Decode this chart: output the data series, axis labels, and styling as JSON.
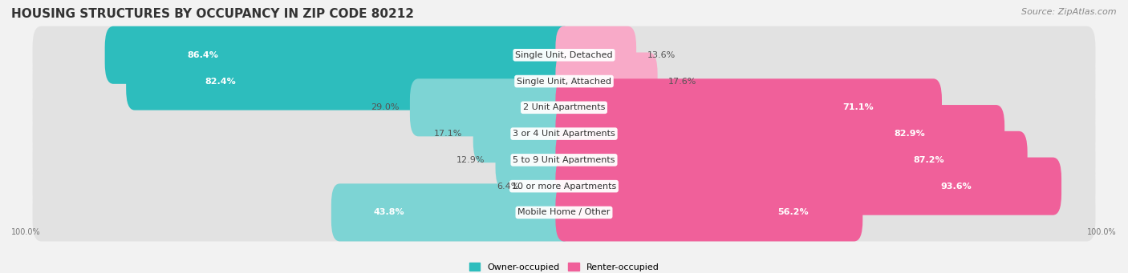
{
  "title": "HOUSING STRUCTURES BY OCCUPANCY IN ZIP CODE 80212",
  "source": "Source: ZipAtlas.com",
  "categories": [
    "Single Unit, Detached",
    "Single Unit, Attached",
    "2 Unit Apartments",
    "3 or 4 Unit Apartments",
    "5 to 9 Unit Apartments",
    "10 or more Apartments",
    "Mobile Home / Other"
  ],
  "owner_pct": [
    86.4,
    82.4,
    29.0,
    17.1,
    12.9,
    6.4,
    43.8
  ],
  "renter_pct": [
    13.6,
    17.6,
    71.1,
    82.9,
    87.2,
    93.6,
    56.2
  ],
  "owner_color_dark": "#2dbdbd",
  "owner_color_light": "#7dd4d4",
  "renter_color_dark": "#f0609a",
  "renter_color_light": "#f8aac8",
  "bg_color": "#f2f2f2",
  "band_color": "#e2e2e2",
  "title_fontsize": 11,
  "source_fontsize": 8,
  "label_fontsize": 8,
  "pct_fontsize": 8,
  "bar_height": 0.6,
  "legend_label_owner": "Owner-occupied",
  "legend_label_renter": "Renter-occupied",
  "bottom_left_label": "100.0%",
  "bottom_right_label": "100.0%"
}
